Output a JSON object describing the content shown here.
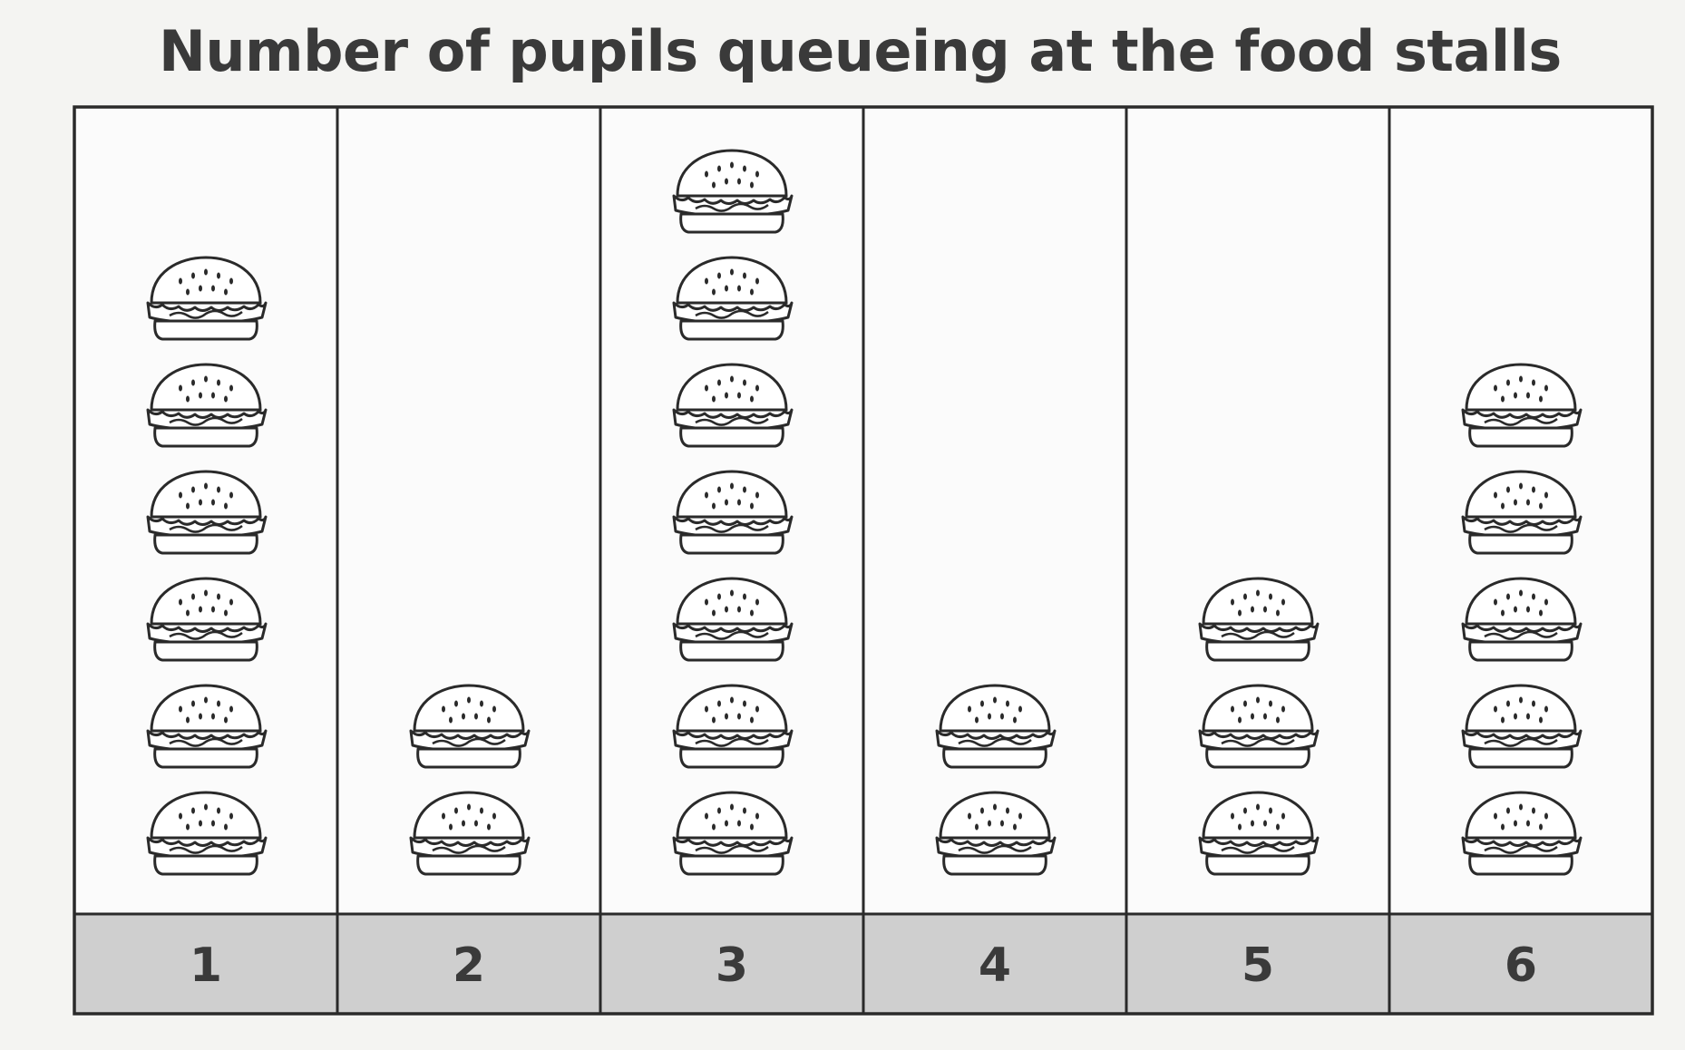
{
  "title": "Number of pupils queueing at the food stalls",
  "chart_data": {
    "type": "bar",
    "title": "Number of pupils queueing at the food stalls",
    "categories": [
      "1",
      "2",
      "3",
      "4",
      "5",
      "6"
    ],
    "values": [
      6,
      2,
      7,
      2,
      3,
      5
    ],
    "symbol": "burger-icon",
    "xlabel": "",
    "ylabel": "",
    "grid": false,
    "colors": {
      "category_band": "#cfcfcf",
      "frame": "#2a2a2a",
      "panel": "#fbfbfb"
    }
  }
}
